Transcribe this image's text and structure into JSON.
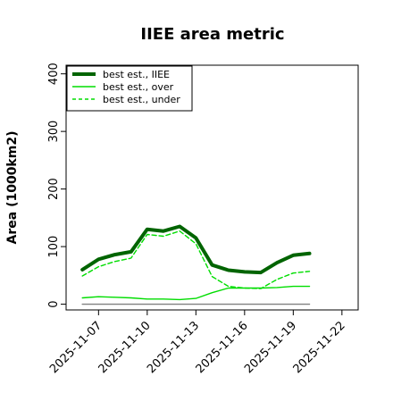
{
  "chart_data": {
    "type": "line",
    "title": "IIEE area metric",
    "ylabel": "Area (1000km2)",
    "xlabel": "",
    "x": [
      "2025-11-06",
      "2025-11-07",
      "2025-11-08",
      "2025-11-09",
      "2025-11-10",
      "2025-11-11",
      "2025-11-12",
      "2025-11-13",
      "2025-11-14",
      "2025-11-15",
      "2025-11-16",
      "2025-11-17",
      "2025-11-18",
      "2025-11-19",
      "2025-11-20"
    ],
    "xticks": [
      "2025-11-07",
      "2025-11-10",
      "2025-11-13",
      "2025-11-16",
      "2025-11-19",
      "2025-11-22"
    ],
    "xlim": [
      "2025-11-05",
      "2025-11-23"
    ],
    "yticks": [
      0,
      100,
      200,
      300,
      400
    ],
    "ylim": [
      -10,
      415
    ],
    "grid": false,
    "legend_position": "top-left",
    "series": [
      {
        "name": "best est., IIEE",
        "color": "#006400",
        "style": "solid",
        "width": "thick",
        "values": [
          60,
          78,
          86,
          91,
          130,
          127,
          135,
          115,
          68,
          59,
          56,
          55,
          72,
          85,
          88
        ]
      },
      {
        "name": "best est., over",
        "color": "#00dd00",
        "style": "solid",
        "width": "thin",
        "values": [
          11,
          13,
          12,
          11,
          9,
          9,
          8,
          10,
          20,
          28,
          28,
          28,
          29,
          31,
          31
        ]
      },
      {
        "name": "best est., under",
        "color": "#00dd00",
        "style": "dashed",
        "width": "thin",
        "values": [
          49,
          65,
          74,
          80,
          121,
          118,
          127,
          105,
          48,
          31,
          28,
          27,
          43,
          54,
          57
        ]
      },
      {
        "name": "",
        "color": "#808080",
        "style": "solid",
        "width": "thin",
        "values": [
          0,
          0,
          0,
          0,
          0,
          0,
          0,
          0,
          0,
          0,
          0,
          0,
          0,
          0,
          0
        ]
      }
    ]
  }
}
